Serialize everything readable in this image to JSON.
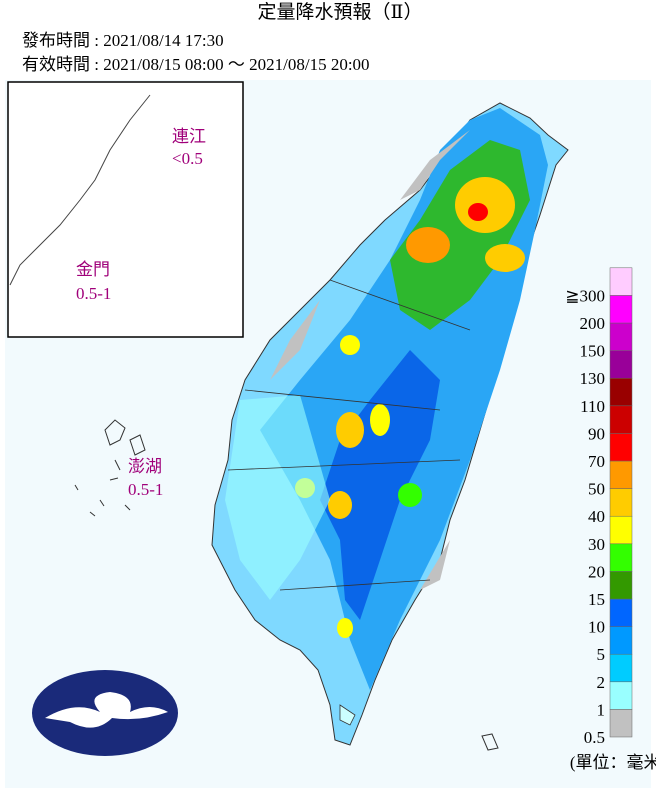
{
  "header": {
    "title": "定量降水預報（Ⅱ）",
    "issued": "發布時間 : 2021/08/14 17:30",
    "valid": "有效時間 : 2021/08/15 08:00 ～ 2021/08/15 20:00"
  },
  "islands": [
    {
      "name": "連江",
      "amount": "<0.5"
    },
    {
      "name": "金門",
      "amount": "0.5-1"
    },
    {
      "name": "澎湖",
      "amount": "0.5-1"
    }
  ],
  "legend": {
    "levels": [
      {
        "label": "0.5",
        "color": "#c1c1c1"
      },
      {
        "label": "1",
        "color": "#99ffff"
      },
      {
        "label": "2",
        "color": "#00ccff"
      },
      {
        "label": "5",
        "color": "#0099ff"
      },
      {
        "label": "10",
        "color": "#0066ff"
      },
      {
        "label": "15",
        "color": "#339900"
      },
      {
        "label": "20",
        "color": "#33ff00"
      },
      {
        "label": "30",
        "color": "#ffff00"
      },
      {
        "label": "40",
        "color": "#ffcc00"
      },
      {
        "label": "50",
        "color": "#ff9900"
      },
      {
        "label": "70",
        "color": "#ff0000"
      },
      {
        "label": "90",
        "color": "#cc0000"
      },
      {
        "label": "110",
        "color": "#990000"
      },
      {
        "label": "130",
        "color": "#990099"
      },
      {
        "label": "150",
        "color": "#cc00cc"
      },
      {
        "label": "200",
        "color": "#ff00ff"
      },
      {
        "label": "≧300",
        "color": "#ffccff"
      }
    ],
    "unit": "(單位：毫米)"
  }
}
